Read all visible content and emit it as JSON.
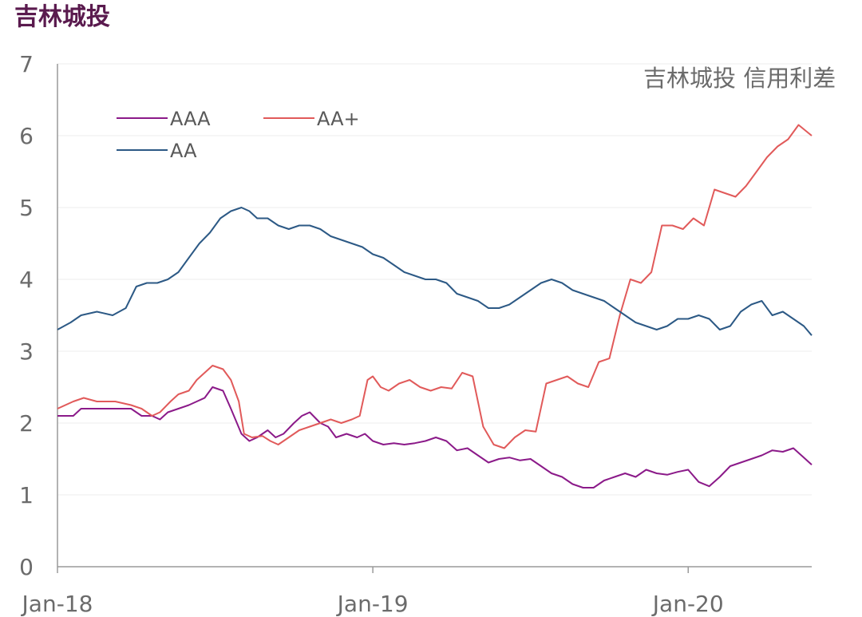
{
  "header": {
    "title": "吉林城投"
  },
  "colors": {
    "AAA": "#8b1a89",
    "AA+": "#e15a5a",
    "AA": "#2c5985",
    "axis": "#9a9a9a",
    "grid": "#eeeeee"
  },
  "chart_data": {
    "type": "line",
    "title": "吉林城投 信用利差",
    "xlabel": "",
    "ylabel": "",
    "ylim": [
      0,
      7
    ],
    "yticks": [
      "0",
      "1",
      "2",
      "3",
      "4",
      "5",
      "6",
      "7"
    ],
    "xticks": [
      {
        "label": "Jan-18",
        "value": 0
      },
      {
        "label": "Jan-19",
        "value": 12
      },
      {
        "label": "Jan-20",
        "value": 24
      }
    ],
    "xlim": [
      0,
      28.7
    ],
    "legend_position": "top-left",
    "series": [
      {
        "name": "AAA",
        "x": [
          0,
          0.6,
          0.9,
          1.5,
          2.2,
          2.8,
          3.2,
          3.6,
          3.9,
          4.2,
          4.6,
          5.0,
          5.3,
          5.6,
          5.9,
          6.3,
          6.6,
          7.0,
          7.3,
          7.6,
          8.0,
          8.3,
          8.6,
          9.0,
          9.3,
          9.6,
          10.0,
          10.3,
          10.6,
          11.0,
          11.4,
          11.7,
          12.0,
          12.4,
          12.8,
          13.2,
          13.6,
          14.0,
          14.4,
          14.8,
          15.2,
          15.6,
          16.0,
          16.4,
          16.8,
          17.2,
          17.6,
          18.0,
          18.4,
          18.8,
          19.2,
          19.6,
          20.0,
          20.4,
          20.8,
          21.2,
          21.6,
          22.0,
          22.4,
          22.8,
          23.2,
          23.6,
          24.0,
          24.4,
          24.8,
          25.2,
          25.6,
          26.0,
          26.4,
          26.8,
          27.2,
          27.6,
          28.0,
          28.4,
          28.7
        ],
        "values": [
          2.1,
          2.1,
          2.2,
          2.2,
          2.2,
          2.2,
          2.1,
          2.1,
          2.05,
          2.15,
          2.2,
          2.25,
          2.3,
          2.35,
          2.5,
          2.45,
          2.2,
          1.85,
          1.75,
          1.8,
          1.9,
          1.8,
          1.85,
          2.0,
          2.1,
          2.15,
          2.0,
          1.95,
          1.8,
          1.85,
          1.8,
          1.85,
          1.75,
          1.7,
          1.72,
          1.7,
          1.72,
          1.75,
          1.8,
          1.75,
          1.62,
          1.65,
          1.55,
          1.45,
          1.5,
          1.52,
          1.48,
          1.5,
          1.4,
          1.3,
          1.25,
          1.15,
          1.1,
          1.1,
          1.2,
          1.25,
          1.3,
          1.25,
          1.35,
          1.3,
          1.28,
          1.32,
          1.35,
          1.18,
          1.12,
          1.25,
          1.4,
          1.45,
          1.5,
          1.55,
          1.62,
          1.6,
          1.65,
          1.52,
          1.42
        ]
      },
      {
        "name": "AA+",
        "x": [
          0,
          0.6,
          1.0,
          1.5,
          2.2,
          2.8,
          3.2,
          3.6,
          3.9,
          4.3,
          4.6,
          5.0,
          5.3,
          5.6,
          5.9,
          6.3,
          6.6,
          6.9,
          7.1,
          7.4,
          7.8,
          8.1,
          8.4,
          8.8,
          9.2,
          9.6,
          10.0,
          10.4,
          10.8,
          11.2,
          11.5,
          11.8,
          12.0,
          12.3,
          12.6,
          13.0,
          13.4,
          13.8,
          14.2,
          14.6,
          15.0,
          15.4,
          15.8,
          16.2,
          16.6,
          17.0,
          17.4,
          17.8,
          18.2,
          18.6,
          19.0,
          19.4,
          19.8,
          20.2,
          20.6,
          21.0,
          21.4,
          21.8,
          22.2,
          22.6,
          23.0,
          23.4,
          23.8,
          24.2,
          24.6,
          25.0,
          25.4,
          25.8,
          26.2,
          26.6,
          27.0,
          27.4,
          27.8,
          28.2,
          28.7
        ],
        "values": [
          2.2,
          2.3,
          2.35,
          2.3,
          2.3,
          2.25,
          2.2,
          2.1,
          2.15,
          2.3,
          2.4,
          2.45,
          2.6,
          2.7,
          2.8,
          2.75,
          2.6,
          2.3,
          1.85,
          1.8,
          1.82,
          1.75,
          1.7,
          1.8,
          1.9,
          1.95,
          2.0,
          2.05,
          2.0,
          2.05,
          2.1,
          2.6,
          2.65,
          2.5,
          2.45,
          2.55,
          2.6,
          2.5,
          2.45,
          2.5,
          2.48,
          2.7,
          2.65,
          1.95,
          1.7,
          1.65,
          1.8,
          1.9,
          1.88,
          2.55,
          2.6,
          2.65,
          2.55,
          2.5,
          2.85,
          2.9,
          3.5,
          4.0,
          3.95,
          4.1,
          4.75,
          4.75,
          4.7,
          4.85,
          4.75,
          5.25,
          5.2,
          5.15,
          5.3,
          5.5,
          5.7,
          5.85,
          5.95,
          6.15,
          6.0
        ]
      },
      {
        "name": "AA",
        "x": [
          0,
          0.5,
          0.9,
          1.5,
          2.1,
          2.6,
          3.0,
          3.4,
          3.8,
          4.2,
          4.6,
          5.0,
          5.4,
          5.8,
          6.2,
          6.6,
          7.0,
          7.3,
          7.6,
          8.0,
          8.4,
          8.8,
          9.2,
          9.6,
          10.0,
          10.4,
          10.8,
          11.2,
          11.6,
          12.0,
          12.4,
          12.8,
          13.2,
          13.6,
          14.0,
          14.4,
          14.8,
          15.2,
          15.6,
          16.0,
          16.4,
          16.8,
          17.2,
          17.6,
          18.0,
          18.4,
          18.8,
          19.2,
          19.6,
          20.0,
          20.4,
          20.8,
          21.2,
          21.6,
          22.0,
          22.4,
          22.8,
          23.2,
          23.6,
          24.0,
          24.4,
          24.8,
          25.2,
          25.6,
          26.0,
          26.4,
          26.8,
          27.2,
          27.6,
          28.0,
          28.4,
          28.7
        ],
        "values": [
          3.3,
          3.4,
          3.5,
          3.55,
          3.5,
          3.6,
          3.9,
          3.95,
          3.95,
          4.0,
          4.1,
          4.3,
          4.5,
          4.65,
          4.85,
          4.95,
          5.0,
          4.95,
          4.85,
          4.85,
          4.75,
          4.7,
          4.75,
          4.75,
          4.7,
          4.6,
          4.55,
          4.5,
          4.45,
          4.35,
          4.3,
          4.2,
          4.1,
          4.05,
          4.0,
          4.0,
          3.95,
          3.8,
          3.75,
          3.7,
          3.6,
          3.6,
          3.65,
          3.75,
          3.85,
          3.95,
          4.0,
          3.95,
          3.85,
          3.8,
          3.75,
          3.7,
          3.6,
          3.5,
          3.4,
          3.35,
          3.3,
          3.35,
          3.45,
          3.45,
          3.5,
          3.45,
          3.3,
          3.35,
          3.55,
          3.65,
          3.7,
          3.5,
          3.55,
          3.45,
          3.35,
          3.22
        ]
      }
    ]
  }
}
